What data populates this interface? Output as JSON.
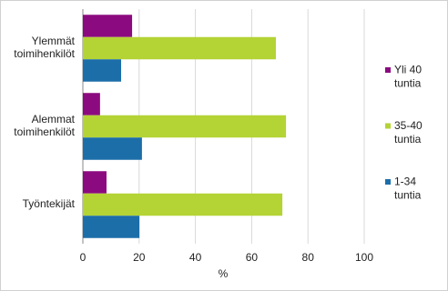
{
  "chart_data": {
    "type": "bar",
    "orientation": "horizontal",
    "categories": [
      "Ylemmät toimihenkilöt",
      "Alemmat toimihenkilöt",
      "Työntekijät"
    ],
    "series": [
      {
        "name": "Yli 40 tuntia",
        "color": "#8c0a7f",
        "values": [
          17.5,
          6.1,
          8.4
        ]
      },
      {
        "name": "35-40 tuntia",
        "color": "#b4d335",
        "values": [
          68.6,
          72.2,
          70.9
        ]
      },
      {
        "name": "1-34 tuntia",
        "color": "#1c6ea9",
        "values": [
          13.6,
          21.0,
          20.1
        ]
      }
    ],
    "xlabel": "%",
    "xlim": [
      0,
      100
    ],
    "xticks": [
      0,
      20,
      40,
      60,
      80,
      100
    ],
    "grid": true,
    "legend": "right"
  }
}
